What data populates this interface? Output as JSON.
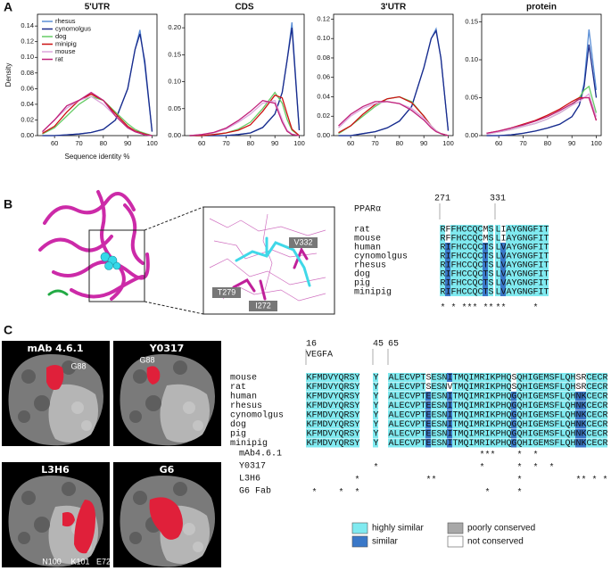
{
  "chart_data": [
    {
      "type": "line",
      "title": "5'UTR",
      "xlabel": "Sequence identity %",
      "ylabel": "Density",
      "legend": "upper left",
      "xlim": [
        53,
        102
      ],
      "xticks": [
        60,
        70,
        80,
        90,
        100
      ],
      "ylim": [
        0,
        0.155
      ],
      "yticks": [
        {
          "value": 0,
          "label": "0.00"
        },
        0.02,
        0.04,
        0.06,
        0.08,
        {
          "value": 0.1,
          "label": "0.10"
        },
        0.12,
        0.14
      ],
      "x": [
        55,
        60,
        65,
        70,
        75,
        80,
        85,
        90,
        93,
        95,
        97,
        100
      ],
      "series": [
        {
          "name": "rhesus",
          "color": "#5b8fd6",
          "values": [
            0,
            0,
            0.001,
            0.002,
            0.004,
            0.008,
            0.02,
            0.06,
            0.11,
            0.135,
            0.09,
            0.005
          ]
        },
        {
          "name": "cynomolgus",
          "color": "#1a2b8c",
          "values": [
            0,
            0,
            0.001,
            0.002,
            0.004,
            0.008,
            0.02,
            0.06,
            0.11,
            0.13,
            0.095,
            0.005
          ]
        },
        {
          "name": "dog",
          "color": "#66cc66",
          "values": [
            0.002,
            0.01,
            0.025,
            0.04,
            0.05,
            0.045,
            0.03,
            0.015,
            0.008,
            0.005,
            0.003,
            0
          ]
        },
        {
          "name": "minipig",
          "color": "#cc1111",
          "values": [
            0.003,
            0.012,
            0.03,
            0.045,
            0.053,
            0.045,
            0.028,
            0.012,
            0.006,
            0.004,
            0.002,
            0
          ]
        },
        {
          "name": "mouse",
          "color": "#dca6dc",
          "values": [
            0.005,
            0.02,
            0.035,
            0.045,
            0.05,
            0.04,
            0.025,
            0.01,
            0.005,
            0.003,
            0.001,
            0
          ]
        },
        {
          "name": "rat",
          "color": "#c0207a",
          "values": [
            0.005,
            0.02,
            0.038,
            0.045,
            0.055,
            0.045,
            0.025,
            0.01,
            0.005,
            0.003,
            0.001,
            0
          ]
        }
      ]
    },
    {
      "type": "line",
      "title": "CDS",
      "xlim": [
        53,
        102
      ],
      "xticks": [
        60,
        70,
        80,
        90,
        100
      ],
      "ylim": [
        0,
        0.225
      ],
      "yticks": [
        {
          "value": 0,
          "label": "0.00"
        },
        0.05,
        {
          "value": 0.1,
          "label": "0.10"
        },
        0.15,
        {
          "value": 0.2,
          "label": "0.20"
        }
      ],
      "x": [
        55,
        60,
        65,
        70,
        75,
        80,
        85,
        90,
        93,
        95,
        97,
        100
      ],
      "series": [
        {
          "color": "#5b8fd6",
          "values": [
            0,
            0,
            0,
            0,
            0.002,
            0.005,
            0.015,
            0.04,
            0.08,
            0.14,
            0.21,
            0.01
          ]
        },
        {
          "color": "#1a2b8c",
          "values": [
            0,
            0,
            0,
            0,
            0.002,
            0.005,
            0.015,
            0.04,
            0.08,
            0.14,
            0.2,
            0.01
          ]
        },
        {
          "color": "#66cc66",
          "values": [
            0,
            0,
            0.002,
            0.005,
            0.012,
            0.025,
            0.05,
            0.08,
            0.06,
            0.03,
            0.01,
            0
          ]
        },
        {
          "color": "#cc1111",
          "values": [
            0,
            0,
            0.002,
            0.005,
            0.01,
            0.02,
            0.045,
            0.075,
            0.07,
            0.04,
            0.012,
            0
          ]
        },
        {
          "color": "#dca6dc",
          "values": [
            0,
            0.002,
            0.005,
            0.012,
            0.025,
            0.04,
            0.06,
            0.065,
            0.03,
            0.01,
            0.003,
            0
          ]
        },
        {
          "color": "#c0207a",
          "values": [
            0,
            0.002,
            0.006,
            0.014,
            0.028,
            0.045,
            0.065,
            0.06,
            0.025,
            0.008,
            0.002,
            0
          ]
        }
      ]
    },
    {
      "type": "line",
      "title": "3'UTR",
      "xlim": [
        53,
        102
      ],
      "xticks": [
        60,
        70,
        80,
        90,
        100
      ],
      "ylim": [
        0,
        0.125
      ],
      "yticks": [
        {
          "value": 0,
          "label": "0.00"
        },
        0.02,
        0.04,
        0.06,
        0.08,
        {
          "value": 0.1,
          "label": "0.10"
        },
        0.12
      ],
      "x": [
        55,
        60,
        65,
        70,
        75,
        80,
        85,
        90,
        93,
        95,
        97,
        100
      ],
      "series": [
        {
          "color": "#5b8fd6",
          "values": [
            0,
            0,
            0.002,
            0.004,
            0.008,
            0.015,
            0.03,
            0.07,
            0.1,
            0.11,
            0.08,
            0.005
          ]
        },
        {
          "color": "#1a2b8c",
          "values": [
            0,
            0,
            0.002,
            0.004,
            0.008,
            0.015,
            0.03,
            0.07,
            0.1,
            0.108,
            0.08,
            0.005
          ]
        },
        {
          "color": "#66cc66",
          "values": [
            0.002,
            0.01,
            0.02,
            0.03,
            0.038,
            0.04,
            0.035,
            0.02,
            0.01,
            0.005,
            0.002,
            0
          ]
        },
        {
          "color": "#cc1111",
          "values": [
            0.003,
            0.01,
            0.022,
            0.032,
            0.038,
            0.04,
            0.034,
            0.02,
            0.01,
            0.005,
            0.002,
            0
          ]
        },
        {
          "color": "#dca6dc",
          "values": [
            0.008,
            0.02,
            0.028,
            0.033,
            0.035,
            0.033,
            0.028,
            0.018,
            0.01,
            0.005,
            0.002,
            0
          ]
        },
        {
          "color": "#c0207a",
          "values": [
            0.01,
            0.022,
            0.03,
            0.035,
            0.035,
            0.033,
            0.026,
            0.016,
            0.008,
            0.004,
            0.002,
            0
          ]
        }
      ]
    },
    {
      "type": "line",
      "title": "protein",
      "xlim": [
        53,
        102
      ],
      "xticks": [
        60,
        70,
        80,
        90,
        100
      ],
      "ylim": [
        0,
        0.16
      ],
      "yticks": [
        {
          "value": 0,
          "label": "0.00"
        },
        0.05,
        {
          "value": 0.1,
          "label": "0.10"
        },
        0.15
      ],
      "x": [
        55,
        60,
        65,
        70,
        75,
        80,
        85,
        90,
        93,
        95,
        97,
        100
      ],
      "series": [
        {
          "color": "#5b8fd6",
          "values": [
            0,
            0,
            0.001,
            0.003,
            0.006,
            0.01,
            0.015,
            0.025,
            0.04,
            0.07,
            0.14,
            0.06
          ]
        },
        {
          "color": "#1a2b8c",
          "values": [
            0,
            0,
            0.001,
            0.003,
            0.006,
            0.01,
            0.015,
            0.025,
            0.04,
            0.065,
            0.12,
            0.05
          ]
        },
        {
          "color": "#66cc66",
          "values": [
            0.002,
            0.005,
            0.008,
            0.012,
            0.016,
            0.022,
            0.03,
            0.04,
            0.05,
            0.06,
            0.065,
            0.03
          ]
        },
        {
          "color": "#cc1111",
          "values": [
            0.003,
            0.006,
            0.01,
            0.015,
            0.02,
            0.027,
            0.035,
            0.045,
            0.05,
            0.05,
            0.05,
            0.02
          ]
        },
        {
          "color": "#dca6dc",
          "values": [
            0.002,
            0.005,
            0.008,
            0.012,
            0.016,
            0.022,
            0.03,
            0.04,
            0.045,
            0.05,
            0.055,
            0.025
          ]
        },
        {
          "color": "#c0207a",
          "values": [
            0.003,
            0.006,
            0.01,
            0.014,
            0.019,
            0.025,
            0.033,
            0.042,
            0.048,
            0.05,
            0.05,
            0.02
          ]
        }
      ]
    }
  ],
  "panel_labels": [
    "A",
    "B",
    "C"
  ],
  "panel_b": {
    "inset_labels": [
      "V332",
      "T279",
      "I272"
    ],
    "alignment": {
      "title": "PPARα",
      "positions": [
        271,
        331
      ],
      "rows": [
        {
          "name": "rat",
          "segments": [
            "RFFHCCQCMS",
            "LIAYGNGFIT"
          ]
        },
        {
          "name": "mouse",
          "segments": [
            "RFFHCCQCMS",
            "LIAYGNGFIT"
          ]
        },
        {
          "name": "human",
          "segments": [
            "RIFHCCQCTS",
            "LVAYGNGFIT"
          ]
        },
        {
          "name": "cynomolgus",
          "segments": [
            "RIFHCCQCTS",
            "LVAYGNGFIT"
          ]
        },
        {
          "name": "rhesus",
          "segments": [
            "RIFHCCQCTS",
            "LVAYGNGFIT"
          ]
        },
        {
          "name": "dog",
          "segments": [
            "RIFHCCQCTS",
            "LVAYGNGFIT"
          ]
        },
        {
          "name": "pig",
          "segments": [
            "RIFHCCQCTS",
            "LVAYGNGFIT"
          ]
        },
        {
          "name": "minipig",
          "segments": [
            "RIFHCCQCTS",
            "LVAYGNGFIT"
          ]
        }
      ],
      "conservation": [
        "* * *** **",
        "**     *"
      ]
    }
  },
  "panel_c": {
    "structures": [
      {
        "title": "mAb 4.6.1",
        "labels": [
          "G88"
        ]
      },
      {
        "title": "Y0317",
        "labels": [
          "G88"
        ]
      },
      {
        "title": "L3H6",
        "labels": [
          "N100",
          "K101",
          "E72"
        ]
      },
      {
        "title": "G6",
        "labels": []
      }
    ],
    "alignment": {
      "title": "VEGFA",
      "positions": [
        16,
        45,
        65
      ],
      "rows": [
        {
          "name": "mouse",
          "segments": [
            "KFMDVYQRSY",
            "Y",
            "ALECVPTSESNITMQIMRIKPHQSQHIGEMSFLQHSRCECR"
          ]
        },
        {
          "name": "rat",
          "segments": [
            "KFMDVYQRSY",
            "Y",
            "ALECVPTSESNVTMQIMRIKPHQSQHIGEMSFLQHSRCECR"
          ]
        },
        {
          "name": "human",
          "segments": [
            "KFMDVYQRSY",
            "Y",
            "ALECVPTEESNITMQIMRIKPHQGQHIGEMSFLQHNKCECR"
          ]
        },
        {
          "name": "rhesus",
          "segments": [
            "KFMDVYQRSY",
            "Y",
            "ALECVPTEESNITMQIMRIKPHQGQHIGEMSFLQHNKCECR"
          ]
        },
        {
          "name": "cynomolgus",
          "segments": [
            "KFMDVYQRSY",
            "Y",
            "ALECVPTEESNITMQIMRIKPHQGQHIGEMSFLQHNKCECR"
          ]
        },
        {
          "name": "dog",
          "segments": [
            "KFMDVYQRSY",
            "Y",
            "ALECVPTEESNITMQIMRIKPHQGQHIGEMSFLQHNKCECR"
          ]
        },
        {
          "name": "pig",
          "segments": [
            "KFMDVYQRSY",
            "Y",
            "ALECVPTEESNITMQIMRIKPHQGQHIGEMSFLQHNKCECR"
          ]
        },
        {
          "name": "minipig",
          "segments": [
            "KFMDVYQRSY",
            "Y",
            "ALECVPTEESNITMQIMRIKPHQGQHIGEMSFLQHNKCECR"
          ]
        }
      ],
      "antibody_rows": [
        {
          "name": "mAb4.6.1",
          "stars": "                              ***    *  *"
        },
        {
          "name": "Y0317",
          "stars": "           *                  *      *  *  *"
        },
        {
          "name": "L3H6",
          "stars": "         *          **               *          ** * *"
        },
        {
          "name": "G6 Fab",
          "stars": " *    *  *                     *     *"
        }
      ]
    },
    "legend": [
      {
        "label": "highly similar",
        "color": "#80eaf0"
      },
      {
        "label": "similar",
        "color": "#3a78c8"
      },
      {
        "label": "poorly conserved",
        "color": "#a8a8a8"
      },
      {
        "label": "not conserved",
        "color": "#ffffff"
      }
    ]
  }
}
